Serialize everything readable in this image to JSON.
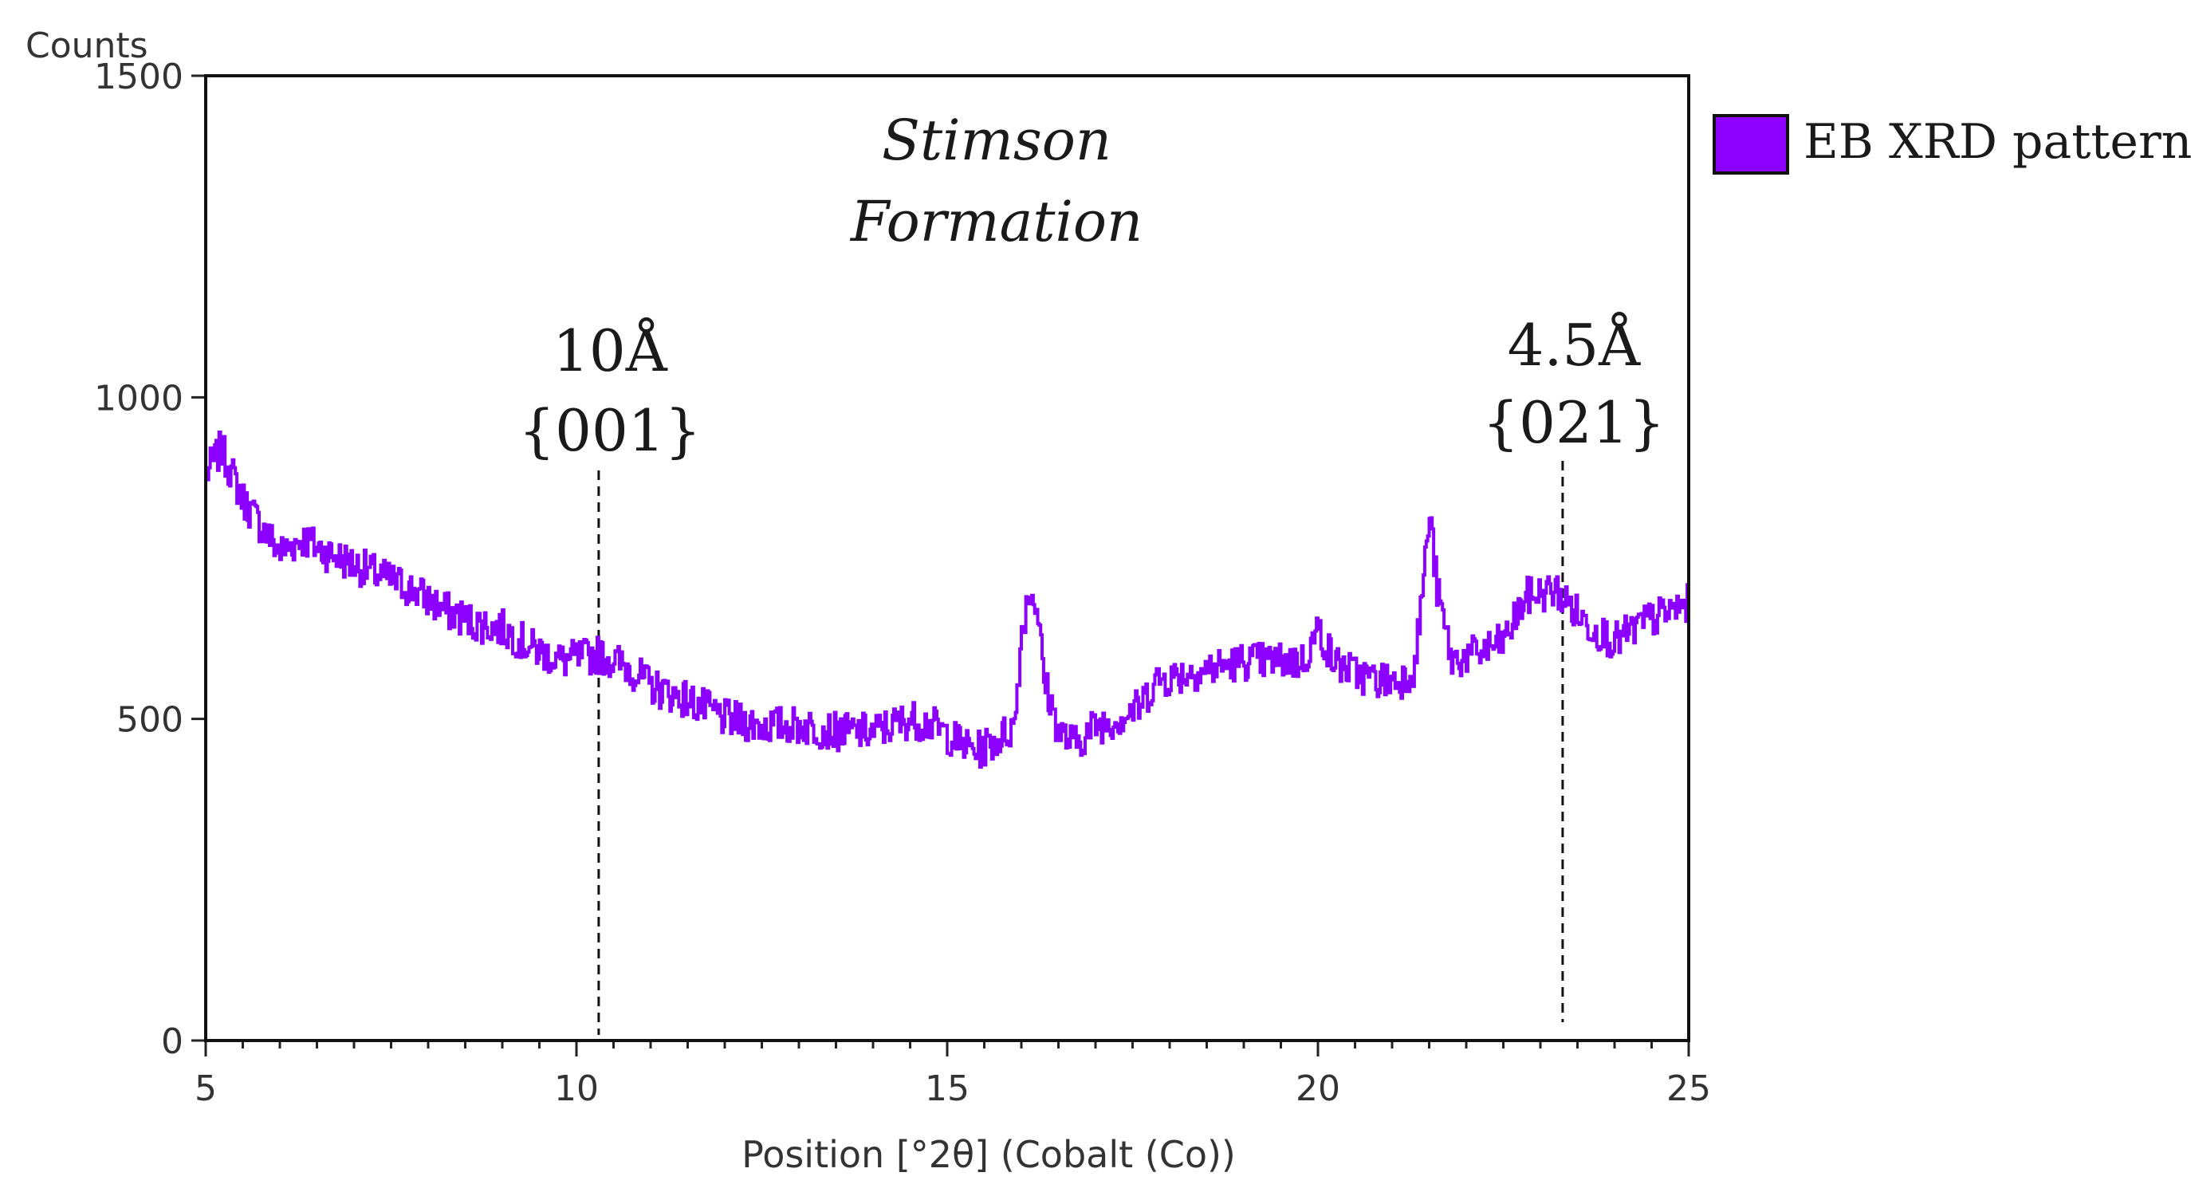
{
  "chart_data": {
    "type": "line",
    "title": [
      "Stimson",
      "Formation"
    ],
    "xlabel": "Position [°2θ] (Cobalt (Co))",
    "ylabel": "Counts",
    "xlim": [
      5,
      25
    ],
    "ylim": [
      0,
      1500
    ],
    "xticks": [
      5,
      10,
      15,
      20,
      25
    ],
    "yticks": [
      0,
      500,
      1000,
      1500
    ],
    "legend": {
      "position": "top-right-outside",
      "label": "EB XRD pattern"
    },
    "series": [
      {
        "name": "EB XRD pattern",
        "color": "#8B00FF",
        "x": [
          5.0,
          5.2,
          5.5,
          5.8,
          6.0,
          6.3,
          6.6,
          7.0,
          7.4,
          7.8,
          8.2,
          8.6,
          9.0,
          9.4,
          9.8,
          10.3,
          10.7,
          11.0,
          11.5,
          12.0,
          12.5,
          13.0,
          13.5,
          14.0,
          14.5,
          14.8,
          15.2,
          15.4,
          15.7,
          15.9,
          16.0,
          16.1,
          16.2,
          16.3,
          16.5,
          16.7,
          17.0,
          17.3,
          17.6,
          17.8,
          18.2,
          18.6,
          19.0,
          19.5,
          19.8,
          20.0,
          20.2,
          20.5,
          20.8,
          21.1,
          21.3,
          21.4,
          21.5,
          21.6,
          21.8,
          22.1,
          22.5,
          22.8,
          23.2,
          23.6,
          24.0,
          24.4,
          24.8,
          25.0
        ],
        "y": [
          880,
          920,
          840,
          790,
          760,
          780,
          760,
          740,
          720,
          700,
          670,
          650,
          640,
          610,
          590,
          600,
          580,
          550,
          530,
          500,
          490,
          490,
          480,
          480,
          500,
          490,
          460,
          450,
          470,
          490,
          640,
          700,
          680,
          560,
          480,
          460,
          490,
          500,
          520,
          560,
          570,
          580,
          590,
          590,
          590,
          640,
          590,
          570,
          560,
          560,
          580,
          700,
          820,
          700,
          590,
          600,
          620,
          690,
          700,
          650,
          620,
          650,
          670,
          680
        ]
      }
    ],
    "annotations": [
      {
        "x": 10.3,
        "label_top": "10Å",
        "label_bottom": "{001}"
      },
      {
        "x": 23.3,
        "label_top": "4.5Å",
        "label_bottom": "{021}"
      }
    ]
  }
}
